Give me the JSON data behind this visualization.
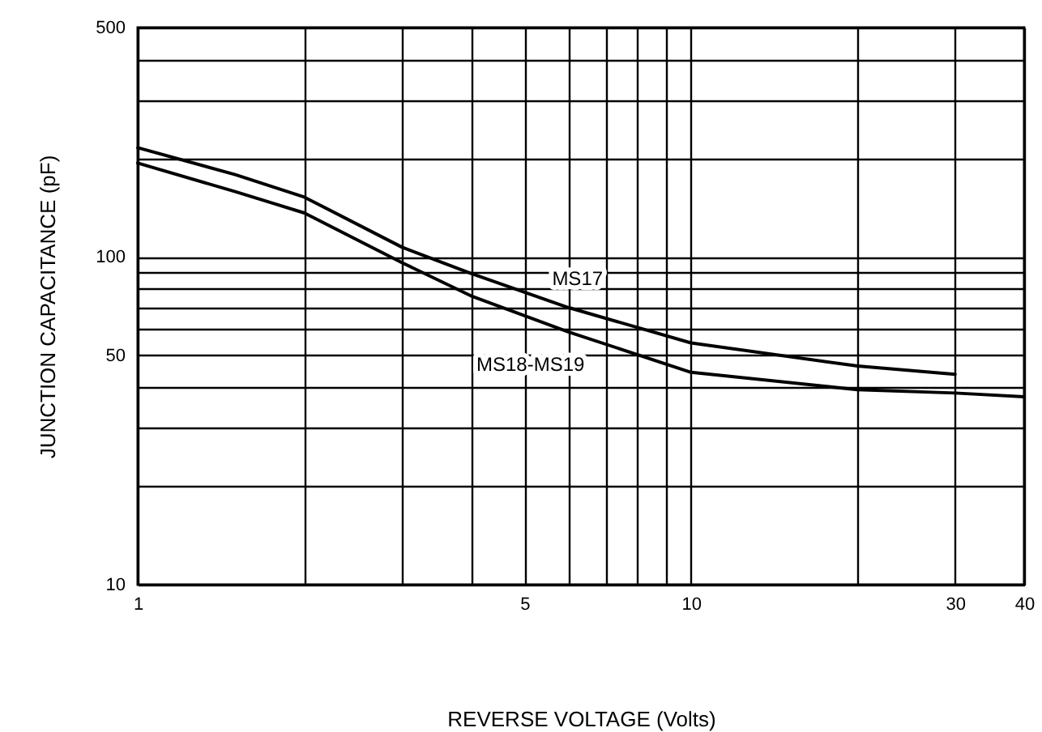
{
  "chart_data": {
    "type": "line",
    "xlabel": "REVERSE VOLTAGE (Volts)",
    "ylabel": "JUNCTION CAPACITANCE (pF)",
    "log": "xy",
    "grid": true,
    "legend": false,
    "x": [
      1,
      1.5,
      2,
      3,
      4,
      6,
      10,
      20,
      30
    ],
    "series": [
      {
        "name": "MS17",
        "color": "#000000",
        "values": [
          215,
          178,
          152,
          107,
          89,
          70,
          54.6,
          46.4,
          43.8
        ]
      },
      {
        "name": "MS18-MS19",
        "color": "#000000",
        "x": [
          1,
          1.5,
          2,
          3,
          4,
          6,
          10,
          20,
          30,
          40
        ],
        "values": [
          193,
          158,
          136,
          96,
          76,
          59,
          44.4,
          39.3,
          38.4,
          37.4
        ]
      }
    ],
    "xlim": [
      1,
      40
    ],
    "xticks": [
      1,
      {
        "value": 2,
        "label": null
      },
      {
        "value": 3,
        "label": null
      },
      {
        "value": 4,
        "label": null
      },
      5,
      {
        "value": 6,
        "label": null
      },
      {
        "value": 7,
        "label": null
      },
      {
        "value": 8,
        "label": null
      },
      {
        "value": 9,
        "label": null
      },
      10,
      {
        "value": 20,
        "label": null
      },
      30,
      40
    ],
    "ylim": [
      10,
      500
    ],
    "yticks": [
      10,
      {
        "value": 20,
        "label": null
      },
      {
        "value": 30,
        "label": null
      },
      {
        "value": 40,
        "label": null
      },
      50,
      {
        "value": 60,
        "label": null
      },
      {
        "value": 70,
        "label": null
      },
      {
        "value": 80,
        "label": null
      },
      {
        "value": 90,
        "label": null
      },
      100,
      {
        "value": 200,
        "label": null
      },
      {
        "value": 300,
        "label": null
      },
      {
        "value": 400,
        "label": null
      },
      500
    ]
  }
}
